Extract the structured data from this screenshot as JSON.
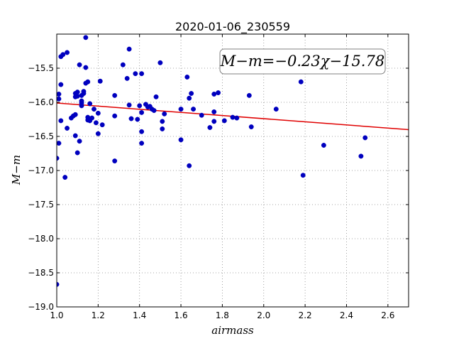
{
  "chart_data": {
    "type": "scatter",
    "title": "2020-01-06_230559",
    "xlabel": "airmass",
    "ylabel": "M−m",
    "xlim": [
      1.0,
      2.7
    ],
    "ylim": [
      -19.0,
      -15.0
    ],
    "y_inverted": true,
    "grid": true,
    "xticks": [
      1.0,
      1.2,
      1.4,
      1.6,
      1.8,
      2.0,
      2.2,
      2.4,
      2.6
    ],
    "xtick_labels": [
      "1.0",
      "1.2",
      "1.4",
      "1.6",
      "1.8",
      "2.0",
      "2.2",
      "2.4",
      "2.6"
    ],
    "yticks": [
      -15.5,
      -16.0,
      -16.5,
      -17.0,
      -17.5,
      -18.0,
      -18.5,
      -19.0
    ],
    "ytick_labels": [
      "−15.5",
      "−16.0",
      "−16.5",
      "−17.0",
      "−17.5",
      "−18.0",
      "−18.5",
      "−19.0"
    ],
    "annotation": "M−m=−0.23χ−15.78",
    "fit": {
      "slope": -0.23,
      "intercept": -15.78,
      "x_range": [
        1.0,
        2.7
      ]
    },
    "colors": {
      "points": "#0000bf",
      "fit_line": "#e00000",
      "grid": "#888888"
    },
    "points": [
      [
        1.0,
        -16.82
      ],
      [
        1.0,
        -18.67
      ],
      [
        1.01,
        -15.95
      ],
      [
        1.01,
        -15.88
      ],
      [
        1.01,
        -16.6
      ],
      [
        1.02,
        -16.27
      ],
      [
        1.02,
        -15.33
      ],
      [
        1.02,
        -15.74
      ],
      [
        1.03,
        -15.3
      ],
      [
        1.04,
        -17.1
      ],
      [
        1.05,
        -16.38
      ],
      [
        1.05,
        -15.27
      ],
      [
        1.07,
        -16.23
      ],
      [
        1.08,
        -16.2
      ],
      [
        1.09,
        -16.18
      ],
      [
        1.09,
        -15.87
      ],
      [
        1.09,
        -15.92
      ],
      [
        1.09,
        -16.49
      ],
      [
        1.1,
        -16.74
      ],
      [
        1.1,
        -15.85
      ],
      [
        1.1,
        -15.91
      ],
      [
        1.11,
        -16.57
      ],
      [
        1.11,
        -15.45
      ],
      [
        1.12,
        -16.01
      ],
      [
        1.12,
        -15.98
      ],
      [
        1.12,
        -15.9
      ],
      [
        1.12,
        -16.05
      ],
      [
        1.13,
        -15.87
      ],
      [
        1.13,
        -15.84
      ],
      [
        1.14,
        -15.05
      ],
      [
        1.14,
        -15.72
      ],
      [
        1.14,
        -15.49
      ],
      [
        1.15,
        -15.7
      ],
      [
        1.15,
        -16.22
      ],
      [
        1.15,
        -16.26
      ],
      [
        1.16,
        -16.27
      ],
      [
        1.16,
        -16.02
      ],
      [
        1.17,
        -16.23
      ],
      [
        1.18,
        -16.1
      ],
      [
        1.19,
        -16.3
      ],
      [
        1.2,
        -16.16
      ],
      [
        1.2,
        -16.46
      ],
      [
        1.21,
        -15.69
      ],
      [
        1.22,
        -16.33
      ],
      [
        1.28,
        -15.9
      ],
      [
        1.28,
        -16.2
      ],
      [
        1.28,
        -16.86
      ],
      [
        1.32,
        -15.45
      ],
      [
        1.34,
        -15.65
      ],
      [
        1.35,
        -16.04
      ],
      [
        1.35,
        -15.22
      ],
      [
        1.36,
        -16.24
      ],
      [
        1.38,
        -15.58
      ],
      [
        1.39,
        -16.25
      ],
      [
        1.4,
        -16.05
      ],
      [
        1.41,
        -16.15
      ],
      [
        1.41,
        -15.58
      ],
      [
        1.41,
        -16.6
      ],
      [
        1.41,
        -16.43
      ],
      [
        1.43,
        -16.03
      ],
      [
        1.44,
        -16.07
      ],
      [
        1.45,
        -16.06
      ],
      [
        1.46,
        -16.1
      ],
      [
        1.47,
        -16.12
      ],
      [
        1.48,
        -15.92
      ],
      [
        1.5,
        -15.42
      ],
      [
        1.51,
        -16.39
      ],
      [
        1.51,
        -16.28
      ],
      [
        1.52,
        -16.17
      ],
      [
        1.6,
        -16.1
      ],
      [
        1.6,
        -16.55
      ],
      [
        1.63,
        -15.63
      ],
      [
        1.64,
        -15.94
      ],
      [
        1.64,
        -16.93
      ],
      [
        1.65,
        -15.87
      ],
      [
        1.66,
        -16.1
      ],
      [
        1.7,
        -16.19
      ],
      [
        1.74,
        -16.37
      ],
      [
        1.76,
        -16.14
      ],
      [
        1.76,
        -16.28
      ],
      [
        1.76,
        -15.88
      ],
      [
        1.78,
        -15.86
      ],
      [
        1.81,
        -16.27
      ],
      [
        1.85,
        -16.22
      ],
      [
        1.87,
        -16.23
      ],
      [
        1.93,
        -15.9
      ],
      [
        1.94,
        -16.36
      ],
      [
        2.06,
        -16.1
      ],
      [
        2.18,
        -15.7
      ],
      [
        2.19,
        -17.07
      ],
      [
        2.29,
        -16.63
      ],
      [
        2.47,
        -16.79
      ],
      [
        2.49,
        -16.52
      ]
    ]
  }
}
